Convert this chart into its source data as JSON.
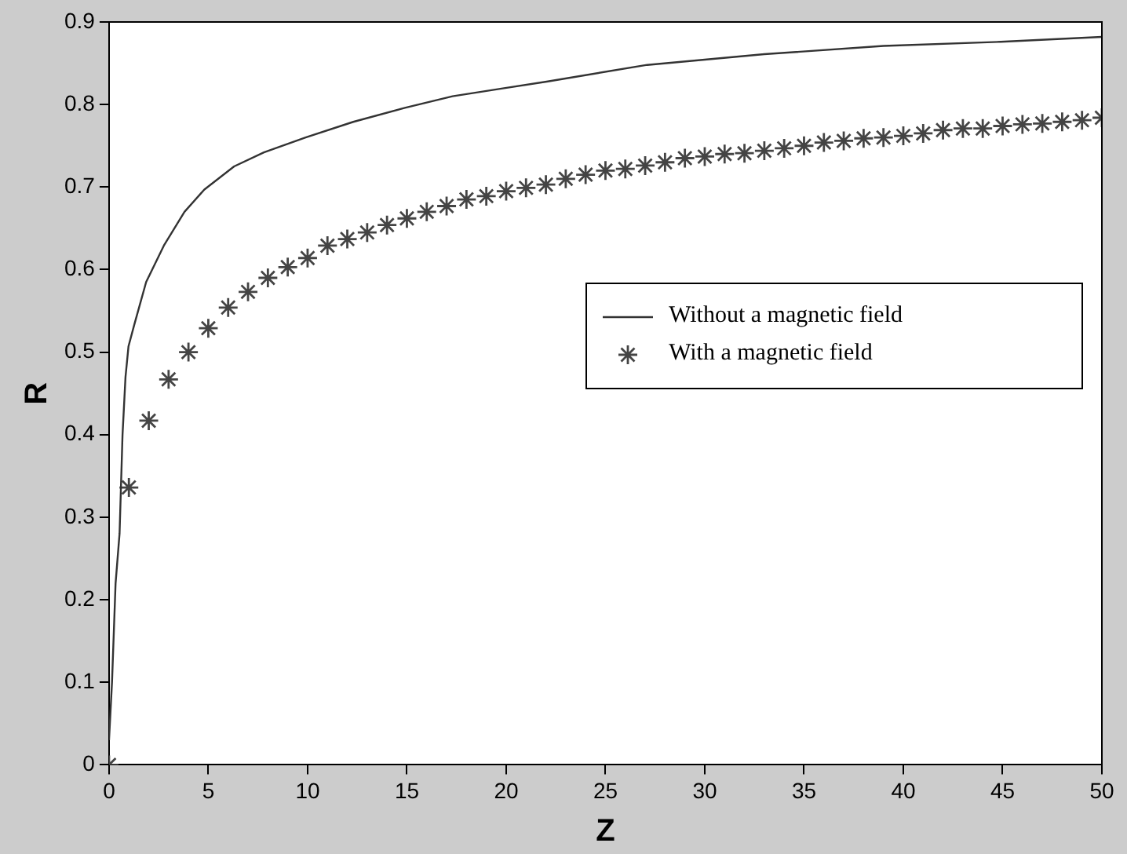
{
  "chart_data": {
    "type": "line",
    "xlabel": "Z",
    "ylabel": "R",
    "xlim": [
      0,
      50
    ],
    "ylim": [
      0,
      0.9
    ],
    "xticks": [
      0,
      5,
      10,
      15,
      20,
      25,
      30,
      35,
      40,
      45,
      50
    ],
    "yticks": [
      0,
      0.1,
      0.2,
      0.3,
      0.4,
      0.5,
      0.6,
      0.7,
      0.8,
      0.9
    ],
    "grid": false,
    "legend": "right",
    "series": [
      {
        "name": "Without a magnetic field",
        "type": "line",
        "marker": "none",
        "line_style": "solid",
        "color": "#333333",
        "x": [
          0,
          0.15,
          0.33,
          0.53,
          0.68,
          0.83,
          0.98,
          1.28,
          1.87,
          2.76,
          3.8,
          4.8,
          6.3,
          7.8,
          9.9,
          12.3,
          14.9,
          17.3,
          19.7,
          22.1,
          27.1,
          33,
          39,
          44.9,
          50
        ],
        "values": [
          0.03,
          0.1,
          0.22,
          0.28,
          0.4,
          0.47,
          0.507,
          0.534,
          0.585,
          0.629,
          0.67,
          0.697,
          0.725,
          0.742,
          0.76,
          0.779,
          0.796,
          0.81,
          0.819,
          0.828,
          0.848,
          0.861,
          0.871,
          0.876,
          0.882
        ]
      },
      {
        "name": "With a magnetic field",
        "type": "scatter",
        "marker": "cross",
        "color": "#444444",
        "x": [
          0,
          1,
          2,
          3,
          4,
          5,
          6,
          7,
          8,
          9,
          10,
          11,
          12,
          13,
          14,
          15,
          16,
          17,
          18,
          19,
          20,
          21,
          22,
          23,
          24,
          25,
          26,
          27,
          28,
          29,
          30,
          31,
          32,
          33,
          34,
          35,
          36,
          37,
          38,
          39,
          40,
          41,
          42,
          43,
          44,
          45,
          46,
          47,
          48,
          49,
          50
        ],
        "values": [
          0,
          0.336,
          0.417,
          0.467,
          0.5,
          0.529,
          0.554,
          0.573,
          0.59,
          0.603,
          0.614,
          0.629,
          0.637,
          0.645,
          0.654,
          0.662,
          0.67,
          0.677,
          0.685,
          0.689,
          0.695,
          0.699,
          0.703,
          0.71,
          0.715,
          0.72,
          0.722,
          0.726,
          0.73,
          0.735,
          0.737,
          0.74,
          0.741,
          0.744,
          0.747,
          0.75,
          0.754,
          0.756,
          0.759,
          0.76,
          0.762,
          0.765,
          0.769,
          0.771,
          0.771,
          0.774,
          0.776,
          0.777,
          0.779,
          0.781,
          0.784
        ]
      }
    ]
  }
}
